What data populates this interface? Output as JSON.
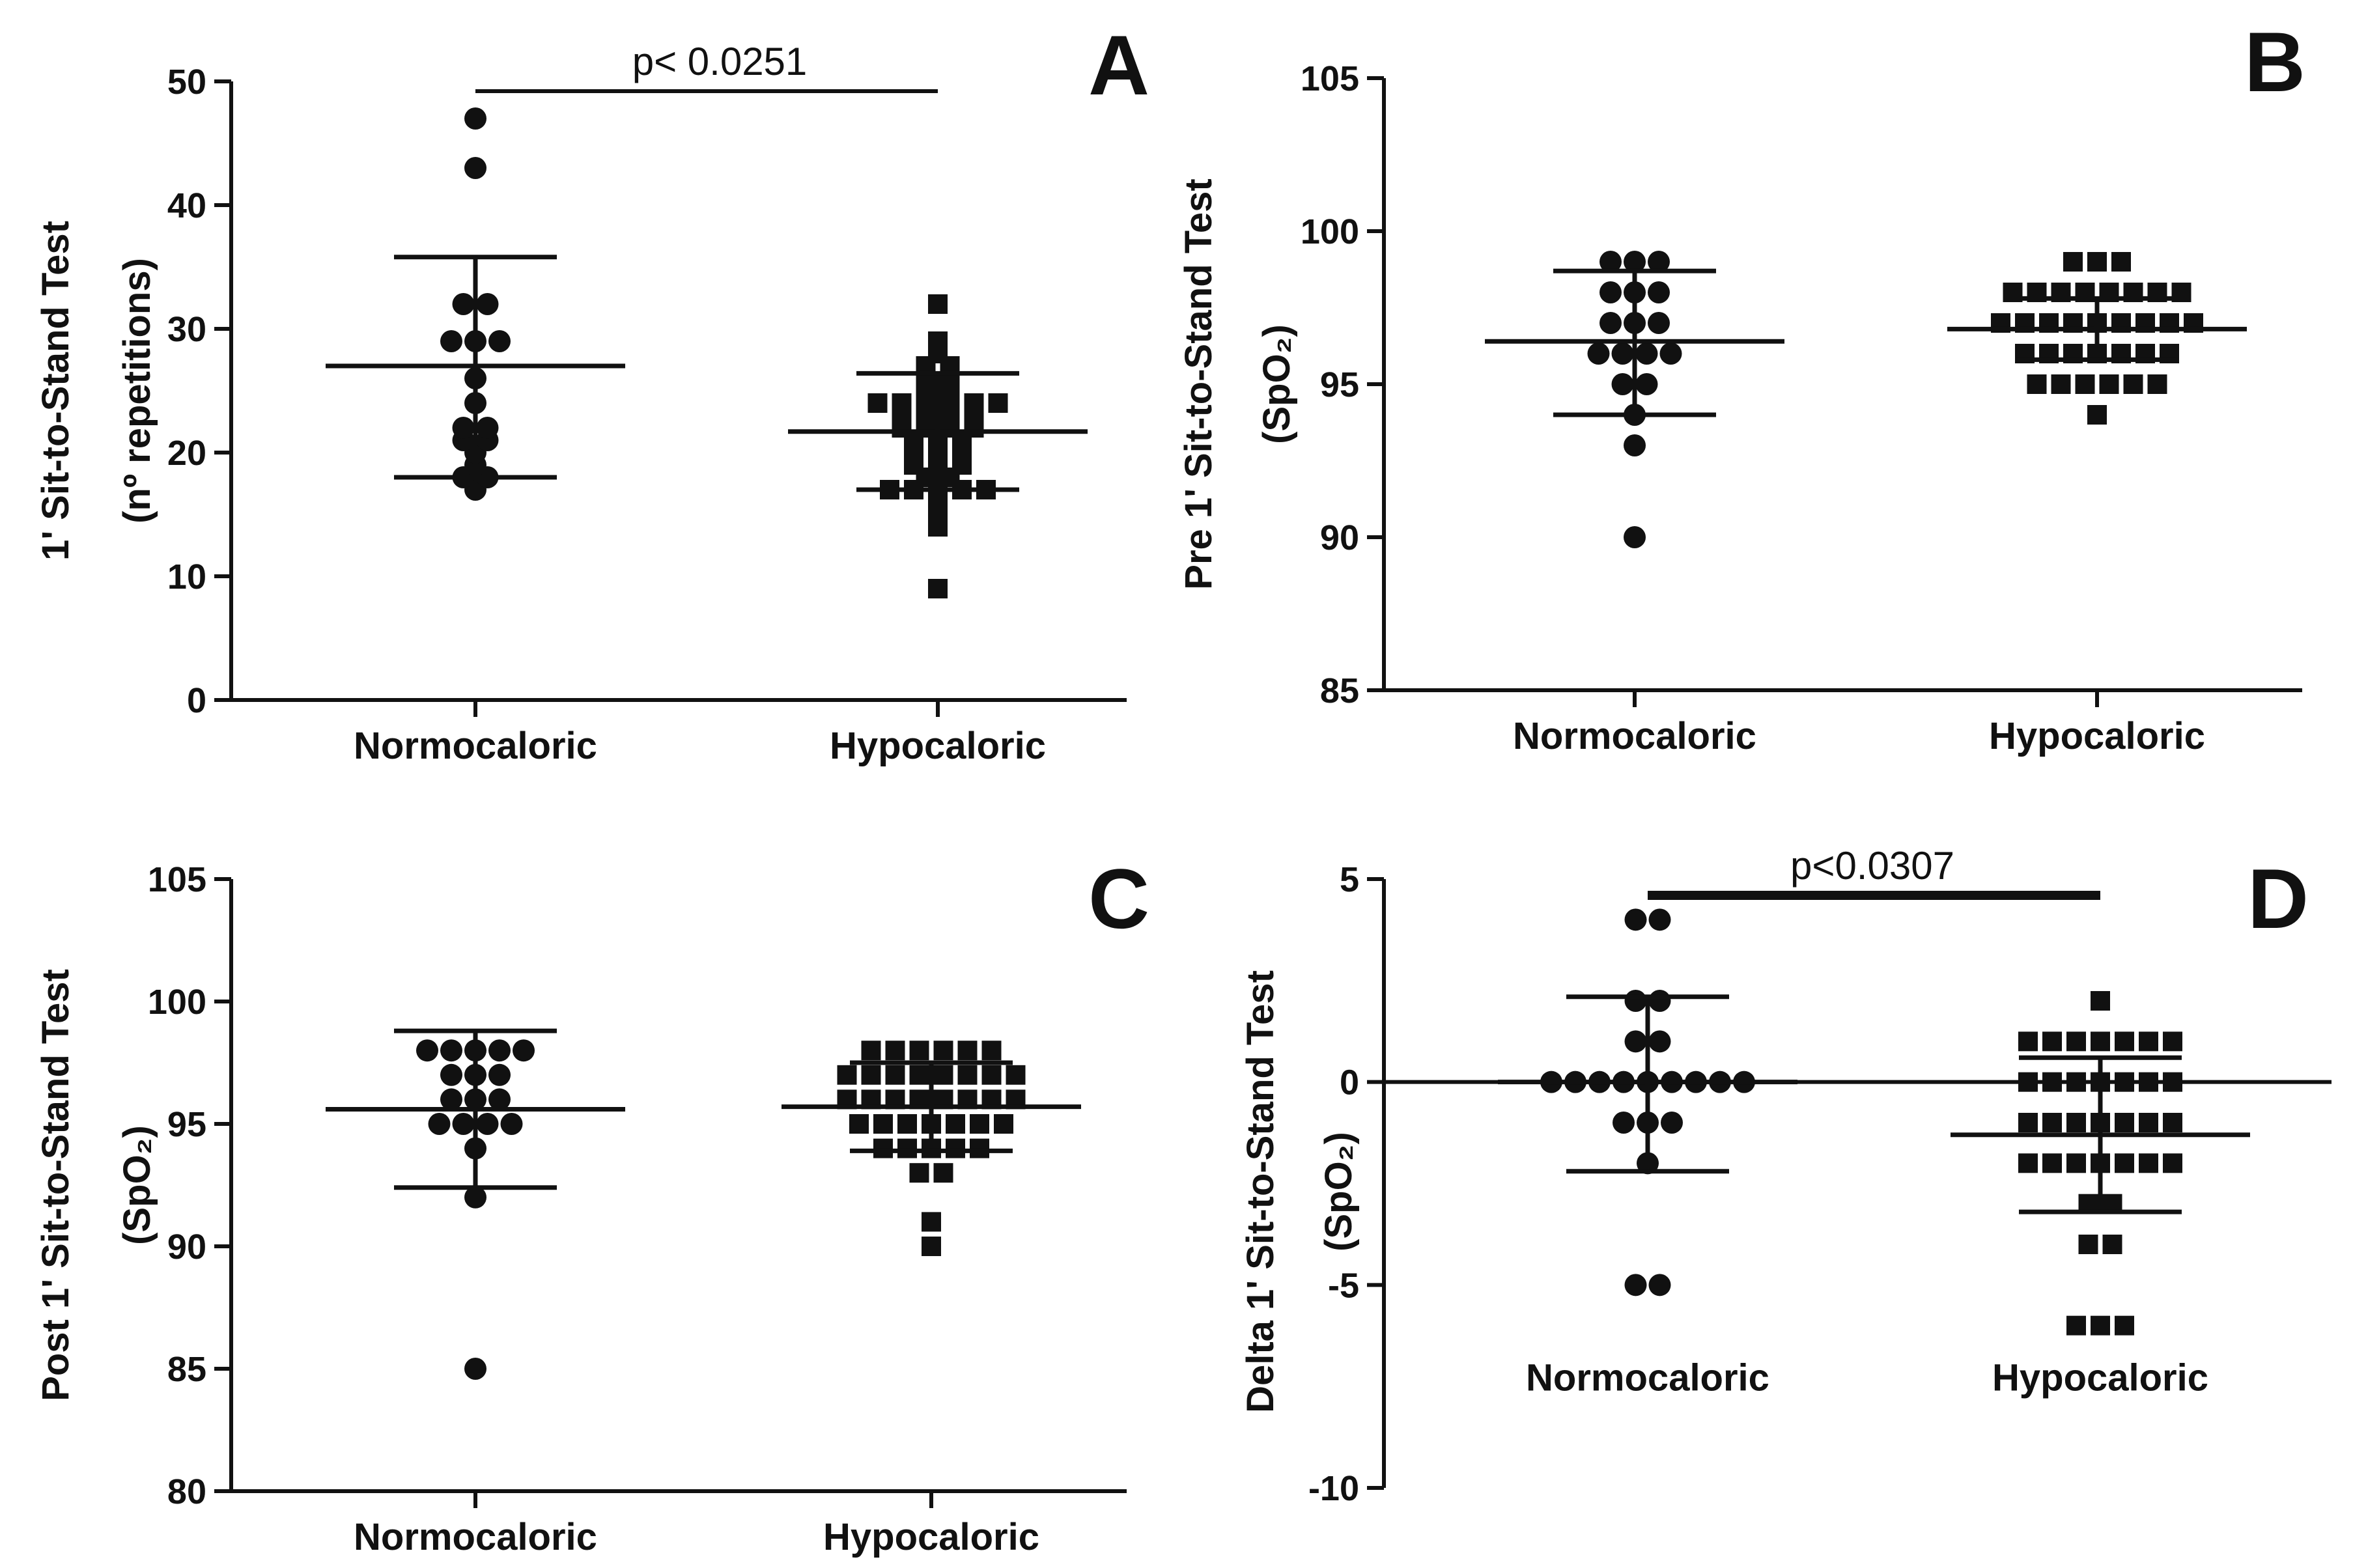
{
  "chart_data": [
    {
      "type": "scatter",
      "panel": "A",
      "ylabel_lines": [
        "1' Sit-to-Stand Test",
        "(nº repetitions)"
      ],
      "ylim": [
        0,
        50
      ],
      "yticks": [
        0,
        10,
        20,
        30,
        40,
        50
      ],
      "categories": [
        "Normocaloric",
        "Hypocaloric"
      ],
      "significance": "p< 0.0251",
      "series": [
        {
          "name": "Normocaloric",
          "marker": "circle",
          "values": [
            47,
            43,
            32,
            32,
            29,
            29,
            29,
            26,
            24,
            22,
            22,
            21,
            21,
            20,
            19,
            18,
            18,
            17
          ],
          "mean": 27,
          "sd_upper": 35.8,
          "sd_lower": 18
        },
        {
          "name": "Hypocaloric",
          "marker": "square",
          "values": [
            32,
            29,
            28,
            27,
            27,
            26,
            26,
            25,
            25,
            24,
            24,
            24,
            24,
            24,
            24,
            23,
            23,
            23,
            23,
            22,
            22,
            22,
            22,
            21,
            21,
            21,
            20,
            20,
            20,
            19,
            19,
            19,
            18,
            18,
            17,
            17,
            17,
            17,
            17,
            16,
            15,
            14,
            9
          ],
          "mean": 21.7,
          "sd_upper": 26.4,
          "sd_lower": 17
        }
      ]
    },
    {
      "type": "scatter",
      "panel": "B",
      "ylabel_lines": [
        "Pre 1' Sit-to-Stand Test",
        "(SpO₂)"
      ],
      "ylim": [
        85,
        105
      ],
      "yticks": [
        85,
        90,
        95,
        100,
        105
      ],
      "categories": [
        "Normocaloric",
        "Hypocaloric"
      ],
      "series": [
        {
          "name": "Normocaloric",
          "marker": "circle",
          "values": [
            99,
            99,
            99,
            98,
            98,
            98,
            97,
            97,
            97,
            96,
            96,
            96,
            96,
            95,
            95,
            94,
            93,
            90
          ],
          "mean": 96.4,
          "sd_upper": 98.7,
          "sd_lower": 94
        },
        {
          "name": "Hypocaloric",
          "marker": "square",
          "values": [
            99,
            99,
            99,
            98,
            98,
            98,
            98,
            98,
            98,
            98,
            98,
            97,
            97,
            97,
            97,
            97,
            97,
            97,
            97,
            97,
            96,
            96,
            96,
            96,
            96,
            96,
            96,
            95,
            95,
            95,
            95,
            95,
            95,
            94
          ],
          "mean": 96.8,
          "sd_upper": 97.8,
          "sd_lower": 95.8
        }
      ]
    },
    {
      "type": "scatter",
      "panel": "C",
      "ylabel_lines": [
        "Post 1' Sit-to-Stand Test",
        "(SpO₂)"
      ],
      "ylim": [
        80,
        105
      ],
      "yticks": [
        80,
        85,
        90,
        95,
        100,
        105
      ],
      "categories": [
        "Normocaloric",
        "Hypocaloric"
      ],
      "series": [
        {
          "name": "Normocaloric",
          "marker": "circle",
          "values": [
            98,
            98,
            98,
            98,
            98,
            97,
            97,
            97,
            96,
            96,
            96,
            95,
            95,
            95,
            95,
            94,
            92,
            85
          ],
          "mean": 95.6,
          "sd_upper": 98.8,
          "sd_lower": 92.4
        },
        {
          "name": "Hypocaloric",
          "marker": "square",
          "values": [
            98,
            98,
            98,
            98,
            98,
            98,
            97,
            97,
            97,
            97,
            97,
            97,
            97,
            97,
            96,
            96,
            96,
            96,
            96,
            96,
            96,
            96,
            95,
            95,
            95,
            95,
            95,
            95,
            95,
            94,
            94,
            94,
            94,
            94,
            93,
            93,
            91,
            90
          ],
          "mean": 95.7,
          "sd_upper": 97.5,
          "sd_lower": 93.9
        }
      ]
    },
    {
      "type": "scatter",
      "panel": "D",
      "ylabel_lines": [
        "Delta 1' Sit-to-Stand Test",
        "(SpO₂)"
      ],
      "ylim": [
        -10,
        5
      ],
      "yticks": [
        -10,
        -5,
        0,
        5
      ],
      "categories": [
        "Normocaloric",
        "Hypocaloric"
      ],
      "significance": "p<0.0307",
      "series": [
        {
          "name": "Normocaloric",
          "marker": "circle",
          "values": [
            4,
            4,
            2,
            2,
            1,
            1,
            0,
            0,
            0,
            0,
            0,
            0,
            0,
            0,
            0,
            -1,
            -1,
            -1,
            -2,
            -5,
            -5
          ],
          "mean": 0,
          "sd_upper": 2.1,
          "sd_lower": -2.2
        },
        {
          "name": "Hypocaloric",
          "marker": "square",
          "values": [
            2,
            1,
            1,
            1,
            1,
            1,
            1,
            1,
            0,
            0,
            0,
            0,
            0,
            0,
            0,
            -1,
            -1,
            -1,
            -1,
            -1,
            -1,
            -1,
            -2,
            -2,
            -2,
            -2,
            -2,
            -2,
            -2,
            -3,
            -3,
            -4,
            -4,
            -6,
            -6,
            -6
          ],
          "mean": -1.3,
          "sd_upper": 0.6,
          "sd_lower": -3.2
        }
      ]
    }
  ]
}
